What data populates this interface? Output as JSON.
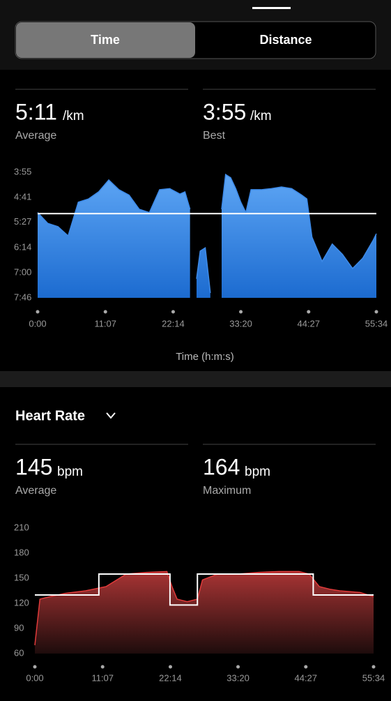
{
  "tabs": [
    "Time",
    "Distance"
  ],
  "pace_stats": [
    {
      "value": "5:11",
      "unit": "/km",
      "label": "Average"
    },
    {
      "value": "3:55",
      "unit": "/km",
      "label": "Best"
    }
  ],
  "pace_x_label": "Time (h:m:s)",
  "hr_section_title": "Heart Rate",
  "hr_stats": [
    {
      "value": "145",
      "unit": "bpm",
      "label": "Average"
    },
    {
      "value": "164",
      "unit": "bpm",
      "label": "Maximum"
    }
  ],
  "chart_data": [
    {
      "type": "area",
      "y_inverted": true,
      "xlim": [
        0,
        3334
      ],
      "xticks": [
        {
          "value": 0,
          "label": "0:00"
        },
        {
          "value": 667,
          "label": "11:07"
        },
        {
          "value": 1334,
          "label": "22:14"
        },
        {
          "value": 2000,
          "label": "33:20"
        },
        {
          "value": 2667,
          "label": "44:27"
        },
        {
          "value": 3334,
          "label": "55:34"
        }
      ],
      "ylim": [
        235,
        466
      ],
      "yticks": [
        {
          "value": 235,
          "label": "3:55"
        },
        {
          "value": 281,
          "label": "4:41"
        },
        {
          "value": 327,
          "label": "5:27"
        },
        {
          "value": 374,
          "label": "6:14"
        },
        {
          "value": 420,
          "label": "7:00"
        },
        {
          "value": 466,
          "label": "7:46"
        }
      ],
      "reference_line": 311,
      "series": [
        {
          "style": "area",
          "color": "#3d8ae8",
          "x": [
            0,
            100,
            200,
            300,
            400,
            500,
            600,
            700,
            800,
            900,
            1000,
            1100,
            1200,
            1300,
            1400,
            1450,
            1500,
            1530,
            1564,
            1600,
            1650,
            1700,
            1760,
            1811,
            1850,
            1900,
            1950,
            2000,
            2050,
            2100,
            2200,
            2300,
            2400,
            2500,
            2550,
            2600,
            2650,
            2700,
            2800,
            2900,
            3000,
            3100,
            3200,
            3300,
            3334
          ],
          "values": [
            309,
            329,
            335,
            352,
            290,
            284,
            271,
            249,
            267,
            277,
            303,
            309,
            267,
            265,
            275,
            271,
            303,
            null,
            431,
            380,
            374,
            457,
            null,
            303,
            239,
            245,
            265,
            290,
            309,
            267,
            267,
            265,
            262,
            265,
            271,
            277,
            284,
            354,
            399,
            367,
            386,
            412,
            393,
            361,
            348
          ]
        }
      ]
    },
    {
      "type": "area",
      "xlim": [
        0,
        3334
      ],
      "xticks": [
        {
          "value": 0,
          "label": "0:00"
        },
        {
          "value": 667,
          "label": "11:07"
        },
        {
          "value": 1334,
          "label": "22:14"
        },
        {
          "value": 2000,
          "label": "33:20"
        },
        {
          "value": 2667,
          "label": "44:27"
        },
        {
          "value": 3334,
          "label": "55:34"
        }
      ],
      "ylim": [
        60,
        210
      ],
      "yticks": [
        60,
        90,
        120,
        150,
        180,
        210
      ],
      "series": [
        {
          "style": "area",
          "color": "#e03a3a",
          "x": [
            0,
            50,
            150,
            300,
            500,
            700,
            900,
            1100,
            1300,
            1350,
            1400,
            1500,
            1600,
            1650,
            1800,
            2000,
            2200,
            2400,
            2600,
            2700,
            2800,
            2900,
            3000,
            3200,
            3334
          ],
          "values": [
            70,
            125,
            128,
            132,
            135,
            140,
            155,
            157,
            158,
            140,
            125,
            122,
            125,
            148,
            155,
            155,
            157,
            158,
            158,
            155,
            140,
            137,
            135,
            133,
            128
          ]
        },
        {
          "style": "step",
          "color": "#ffffff",
          "x": [
            0,
            630,
            630,
            1330,
            1330,
            1600,
            1600,
            2740,
            2740,
            3334
          ],
          "values": [
            130,
            130,
            155,
            155,
            118,
            118,
            155,
            155,
            130,
            130
          ]
        }
      ]
    }
  ]
}
